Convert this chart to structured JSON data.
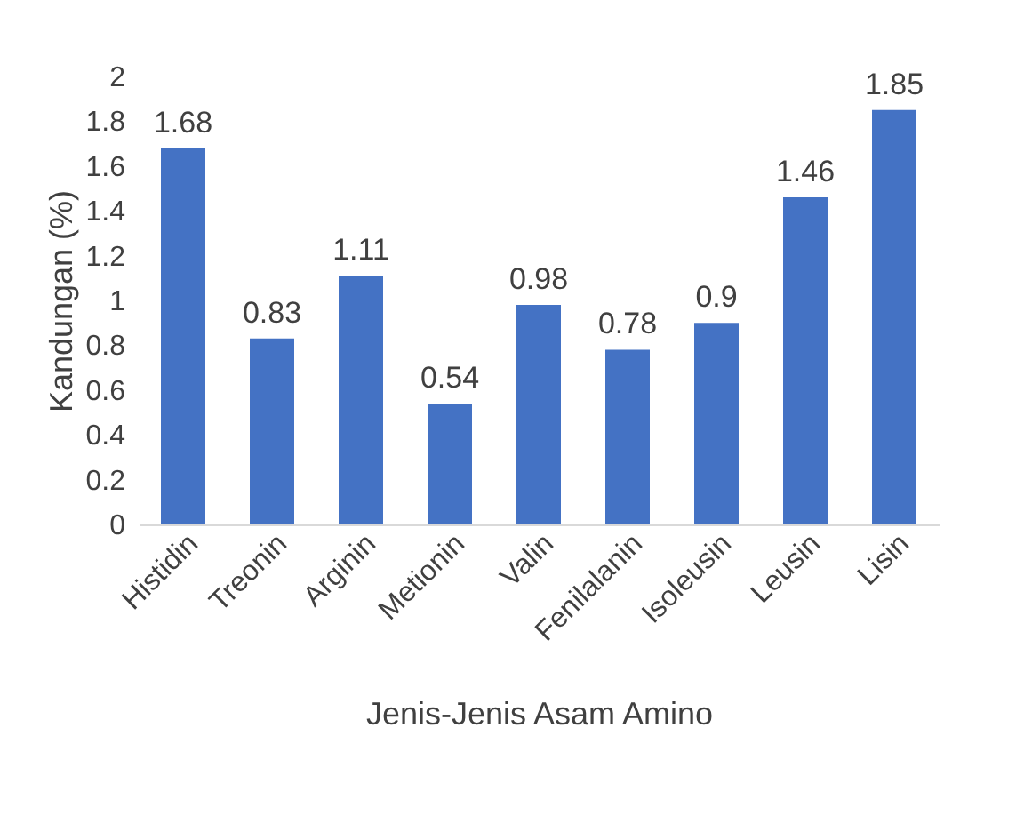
{
  "chart_data": {
    "type": "bar",
    "categories": [
      "Histidin",
      "Treonin",
      "Arginin",
      "Metionin",
      "Valin",
      "Fenilalanin",
      "Isoleusin",
      "Leusin",
      "Lisin"
    ],
    "values": [
      1.68,
      0.83,
      1.11,
      0.54,
      0.98,
      0.78,
      0.9,
      1.46,
      1.85
    ],
    "color": "#4472c4",
    "xlabel": "Jenis-Jenis Asam Amino",
    "ylabel": "Kandungan (%)",
    "ylim": [
      0,
      2
    ],
    "yticks": [
      0,
      0.2,
      0.4,
      0.6,
      0.8,
      1,
      1.2,
      1.4,
      1.6,
      1.8,
      2
    ],
    "data_labels": true,
    "grid": false
  }
}
